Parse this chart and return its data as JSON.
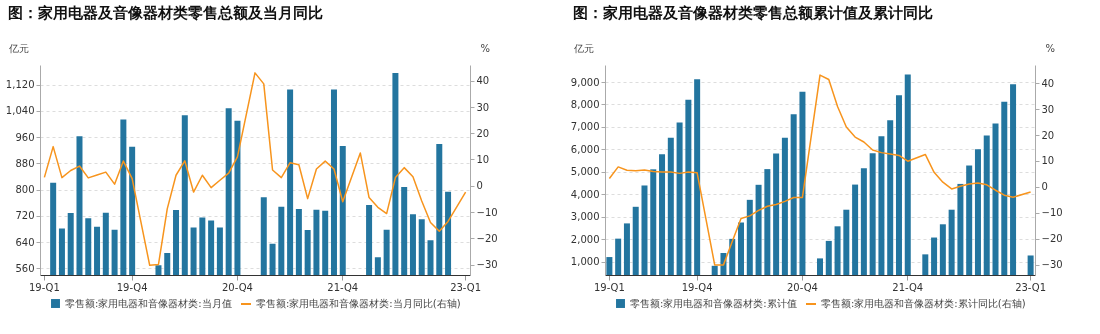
{
  "chart_data": [
    {
      "type": "bar",
      "title": "图：家用电器及音像器材类零售总额及当月同比",
      "ylabel": "亿元",
      "y2label": "%",
      "categories": [
        "19-Q1",
        null,
        null,
        null,
        null,
        null,
        null,
        null,
        null,
        null,
        "19-Q4",
        null,
        null,
        null,
        null,
        null,
        null,
        null,
        null,
        null,
        null,
        null,
        "20-Q4",
        null,
        null,
        null,
        null,
        null,
        null,
        null,
        null,
        null,
        null,
        null,
        "21-Q4",
        null,
        null,
        null,
        null,
        null,
        null,
        null,
        null,
        null,
        null,
        null,
        null,
        null,
        "23-Q1"
      ],
      "ylim": [
        540,
        1180
      ],
      "yticks": [
        560,
        640,
        720,
        800,
        880,
        960,
        {
          "value": 1040,
          "label": "1,040"
        },
        {
          "value": 1120,
          "label": "1,120"
        }
      ],
      "y2lim": [
        -34,
        46
      ],
      "y2ticks": [
        -30,
        -20,
        -10,
        0,
        10,
        20,
        30,
        40
      ],
      "grid": "y",
      "legend": "bottom",
      "series": [
        {
          "name": "零售额:家用电器和音像器材类:当月值",
          "color": "#23759f",
          "values": [
            null,
            821,
            682,
            729,
            963,
            713,
            687,
            730,
            678,
            1014,
            931,
            null,
            null,
            570,
            607,
            738,
            1027,
            685,
            715,
            706,
            685,
            1048,
            1010,
            null,
            null,
            777,
            635,
            748,
            1105,
            741,
            677,
            739,
            736,
            1105,
            933,
            null,
            null,
            753,
            594,
            678,
            1156,
            808,
            725,
            710,
            646,
            939,
            794,
            null,
            null
          ]
        },
        {
          "name": "零售额:家用电器和音像器材类:当月同比(右轴)",
          "type": "line",
          "axis": "y2",
          "color": "#f7941d",
          "values": [
            3.2,
            14.9,
            3.1,
            5.8,
            7.5,
            3.0,
            4.1,
            5.2,
            0.6,
            9.4,
            2.7,
            null,
            -30.3,
            -30.0,
            -8.8,
            4.0,
            9.5,
            -2.4,
            4.0,
            -0.7,
            2.1,
            4.8,
            11.0,
            null,
            43.0,
            38.8,
            6.0,
            3.1,
            8.8,
            8.0,
            -4.9,
            6.4,
            9.4,
            6.4,
            -6.1,
            null,
            12.5,
            -4.5,
            -8.2,
            -10.6,
            3.1,
            6.9,
            3.4,
            -5.8,
            -14.0,
            -17.3,
            -13.6,
            null,
            -2.4
          ]
        }
      ]
    },
    {
      "type": "bar",
      "title": "图：家用电器及音像器材类零售总额累计值及累计同比",
      "ylabel": "亿元",
      "y2label": "%",
      "categories": [
        "19-Q1",
        null,
        null,
        null,
        null,
        null,
        null,
        null,
        null,
        null,
        "19-Q4",
        null,
        null,
        null,
        null,
        null,
        null,
        null,
        null,
        null,
        null,
        null,
        "20-Q4",
        null,
        null,
        null,
        null,
        null,
        null,
        null,
        null,
        null,
        null,
        null,
        "21-Q4",
        null,
        null,
        null,
        null,
        null,
        null,
        null,
        null,
        null,
        null,
        null,
        null,
        null,
        "23-Q1"
      ],
      "ylim": [
        400,
        9760
      ],
      "yticks": [
        {
          "value": 1000,
          "label": "1,000"
        },
        {
          "value": 2000,
          "label": "2,000"
        },
        {
          "value": 3000,
          "label": "3,000"
        },
        {
          "value": 4000,
          "label": "4,000"
        },
        {
          "value": 5000,
          "label": "5,000"
        },
        {
          "value": 6000,
          "label": "6,000"
        },
        {
          "value": 7000,
          "label": "7,000"
        },
        {
          "value": 8000,
          "label": "8,000"
        },
        {
          "value": 9000,
          "label": "9,000"
        }
      ],
      "y2lim": [
        -34,
        47
      ],
      "y2ticks": [
        -30,
        -20,
        -10,
        0,
        10,
        20,
        30,
        40
      ],
      "grid": "y",
      "legend": "bottom",
      "series": [
        {
          "name": "零售额:家用电器和音像器材类:累计值",
          "color": "#23759f",
          "values": [
            1200,
            2020,
            2700,
            3440,
            4390,
            5110,
            5780,
            6520,
            7200,
            8210,
            9130,
            null,
            810,
            1380,
            2010,
            2740,
            3750,
            4420,
            5120,
            5810,
            6520,
            7560,
            8570,
            null,
            1140,
            1920,
            2570,
            3310,
            4430,
            5160,
            5830,
            6580,
            7300,
            8410,
            9340,
            null,
            1320,
            2070,
            2660,
            3310,
            4460,
            5280,
            6000,
            6620,
            7150,
            8120,
            8900,
            null,
            1270
          ]
        },
        {
          "name": "零售额:家用电器和音像器材类:累计同比(右轴)",
          "type": "line",
          "axis": "y2",
          "color": "#f7941d",
          "values": [
            3.2,
            7.7,
            6.4,
            6.2,
            6.5,
            5.9,
            5.7,
            5.7,
            5.2,
            5.7,
            5.4,
            null,
            -30.1,
            -30.1,
            -21.1,
            -12.2,
            -11.2,
            -9.1,
            -7.5,
            -6.8,
            -5.6,
            -4.1,
            -4.1,
            null,
            43.1,
            41.4,
            31.0,
            23.1,
            19.2,
            17.3,
            14.2,
            13.2,
            12.7,
            12.1,
            9.9,
            null,
            12.5,
            5.6,
            1.8,
            -0.8,
            0.2,
            1.1,
            1.5,
            0.8,
            -1.3,
            -3.2,
            -4.0,
            null,
            -2.0
          ]
        }
      ]
    }
  ]
}
